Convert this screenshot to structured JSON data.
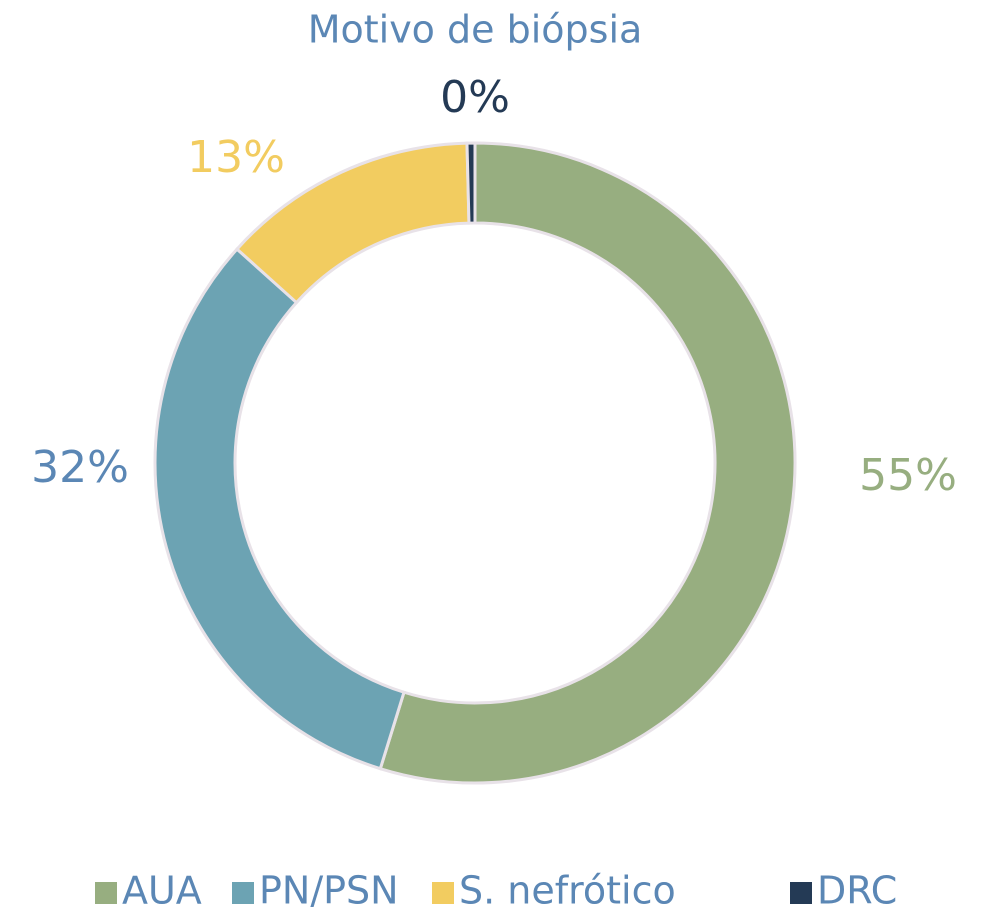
{
  "chart_data": {
    "type": "pie",
    "title": "Motivo de biópsia",
    "categories": [
      "AUA",
      "PN/PSN",
      "S. nefrótico",
      "DRC"
    ],
    "values": [
      55,
      32,
      13,
      0.4
    ],
    "value_labels": [
      "55%",
      "32%",
      "13%",
      "0%"
    ],
    "colors": [
      "#97ae80",
      "#6ca3b3",
      "#f2cc60",
      "#243a55"
    ],
    "label_colors": [
      "#97ae80",
      "#5b87b5",
      "#f2cc60",
      "#243a55"
    ],
    "donut": true,
    "legend": "bottom"
  }
}
